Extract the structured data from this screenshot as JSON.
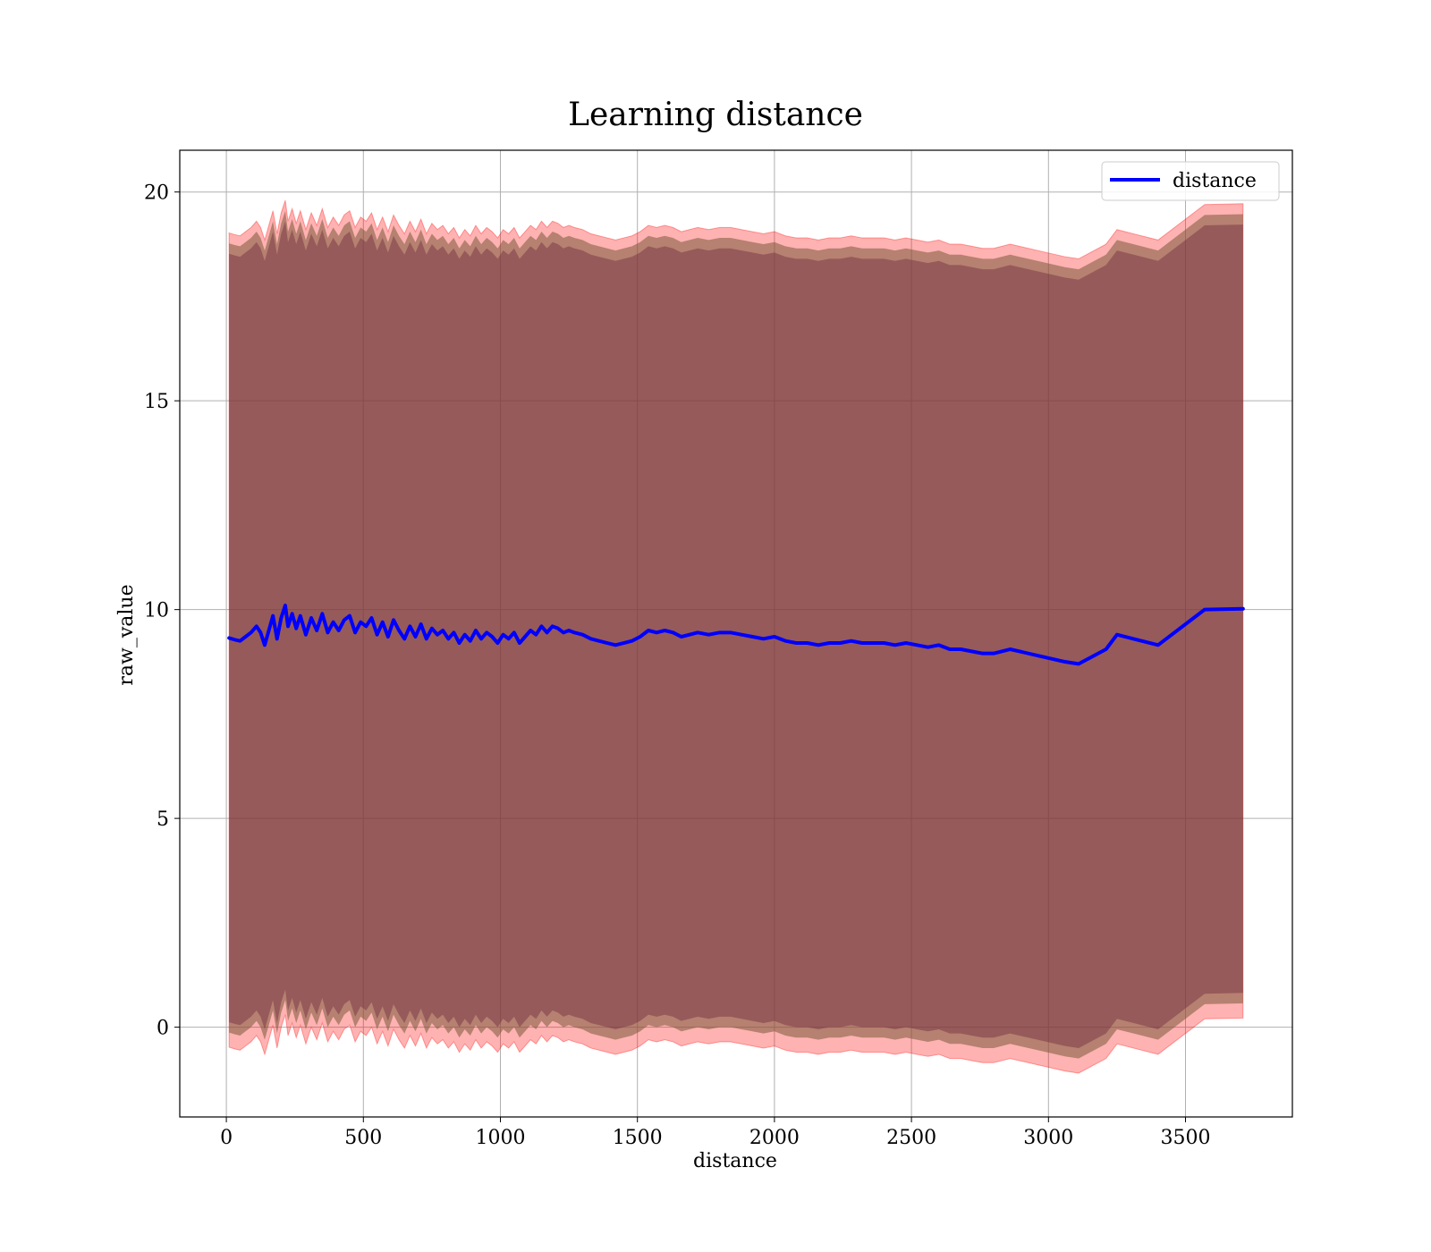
{
  "chart_data": {
    "type": "line",
    "title": "Learning distance",
    "xlabel": "distance",
    "ylabel": "raw_value",
    "xlim": [
      -170,
      3890
    ],
    "ylim": [
      -2.15,
      21.0
    ],
    "xticks": [
      0,
      500,
      1000,
      1500,
      2000,
      2500,
      3000,
      3500
    ],
    "xtick_labels": [
      "0",
      "500",
      "1000",
      "1500",
      "2000",
      "2500",
      "3000",
      "3500"
    ],
    "yticks": [
      0,
      5,
      10,
      15,
      20
    ],
    "ytick_labels": [
      "0",
      "5",
      "10",
      "15",
      "20"
    ],
    "grid": true,
    "legend": {
      "placement": "top-right",
      "entries": [
        "distance"
      ]
    },
    "colors": {
      "line": "#0000ff",
      "band": "#ff0000",
      "inner_band": "#7a5a3a",
      "grid": "#b0b0b0"
    },
    "series": [
      {
        "name": "distance",
        "x": [
          10,
          30,
          50,
          70,
          90,
          110,
          125,
          140,
          155,
          170,
          185,
          200,
          215,
          225,
          240,
          255,
          270,
          290,
          310,
          330,
          350,
          370,
          390,
          410,
          430,
          450,
          470,
          490,
          510,
          530,
          550,
          570,
          590,
          610,
          630,
          650,
          670,
          690,
          710,
          730,
          750,
          770,
          790,
          810,
          830,
          850,
          870,
          890,
          910,
          930,
          950,
          970,
          990,
          1010,
          1030,
          1050,
          1070,
          1090,
          1110,
          1130,
          1150,
          1170,
          1190,
          1210,
          1230,
          1250,
          1270,
          1300,
          1330,
          1360,
          1390,
          1420,
          1450,
          1480,
          1510,
          1540,
          1570,
          1600,
          1630,
          1660,
          1690,
          1720,
          1760,
          1800,
          1840,
          1880,
          1920,
          1960,
          2000,
          2040,
          2080,
          2120,
          2160,
          2200,
          2240,
          2280,
          2320,
          2360,
          2400,
          2440,
          2480,
          2520,
          2560,
          2600,
          2640,
          2680,
          2720,
          2760,
          2800,
          2860,
          2960,
          3060,
          3110,
          3210,
          3250,
          3400,
          3570,
          3710
        ],
        "values": [
          9.32,
          9.28,
          9.25,
          9.35,
          9.45,
          9.6,
          9.45,
          9.15,
          9.5,
          9.85,
          9.3,
          9.8,
          10.1,
          9.6,
          9.9,
          9.55,
          9.85,
          9.4,
          9.8,
          9.5,
          9.9,
          9.45,
          9.7,
          9.5,
          9.75,
          9.85,
          9.45,
          9.7,
          9.6,
          9.8,
          9.4,
          9.7,
          9.35,
          9.75,
          9.5,
          9.3,
          9.6,
          9.35,
          9.65,
          9.3,
          9.55,
          9.4,
          9.5,
          9.3,
          9.45,
          9.2,
          9.4,
          9.25,
          9.5,
          9.3,
          9.45,
          9.35,
          9.2,
          9.4,
          9.3,
          9.45,
          9.2,
          9.35,
          9.5,
          9.4,
          9.6,
          9.45,
          9.6,
          9.55,
          9.45,
          9.5,
          9.45,
          9.4,
          9.3,
          9.25,
          9.2,
          9.15,
          9.2,
          9.25,
          9.35,
          9.5,
          9.45,
          9.5,
          9.45,
          9.35,
          9.4,
          9.45,
          9.4,
          9.45,
          9.45,
          9.4,
          9.35,
          9.3,
          9.35,
          9.25,
          9.2,
          9.2,
          9.15,
          9.2,
          9.2,
          9.25,
          9.2,
          9.2,
          9.2,
          9.15,
          9.2,
          9.15,
          9.1,
          9.15,
          9.05,
          9.05,
          9.0,
          8.95,
          8.95,
          9.05,
          8.9,
          8.75,
          8.7,
          9.05,
          9.4,
          9.15,
          10.0,
          10.02
        ]
      }
    ],
    "bands": {
      "outer_upper_offset": 9.7,
      "outer_lower_offset": -9.8,
      "inner_upper_offset": 9.45,
      "inner_lower_offset": -9.45,
      "core_upper_offset": 9.2,
      "core_lower_offset": -9.2
    }
  }
}
